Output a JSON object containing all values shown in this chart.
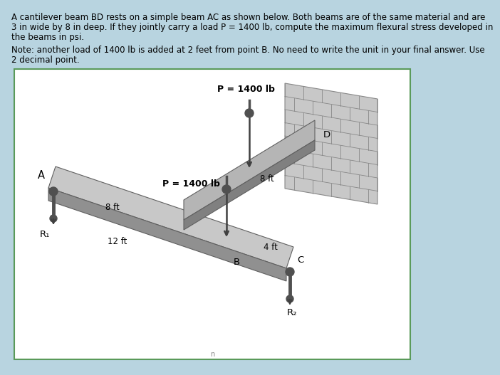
{
  "title_text1": "A cantilever beam BD rests on a simple beam AC as shown below. Both beams are of the same material and are",
  "title_text2": "3 in wide by 8 in deep. If they jointly carry a load P = 1400 lb, compute the maximum flexural stress developed in",
  "title_text3": "the beams in psi.",
  "note_text1": "Note: another load of 1400 lb is added at 2 feet from point B. No need to write the unit in your final answer. Use",
  "note_text2": "2 decimal point.",
  "bg_color": "#b8d4e0",
  "box_bg": "#ffffff",
  "box_border": "#5a9a5a",
  "text_color": "#000000",
  "label_fontsize": 8.5,
  "title_fontsize": 8.5,
  "P_label_top": "P = 1400 lb",
  "P_label_mid": "P = 1400 lb",
  "label_8ft_right": "8 ft",
  "label_8ft_left": "8 ft",
  "label_12ft": "12 ft",
  "label_4ft": "4 ft",
  "label_A": "A",
  "label_B": "B",
  "label_C": "C",
  "label_D": "D",
  "label_R1": "R₁",
  "label_R2": "R₂",
  "label_n": "n"
}
